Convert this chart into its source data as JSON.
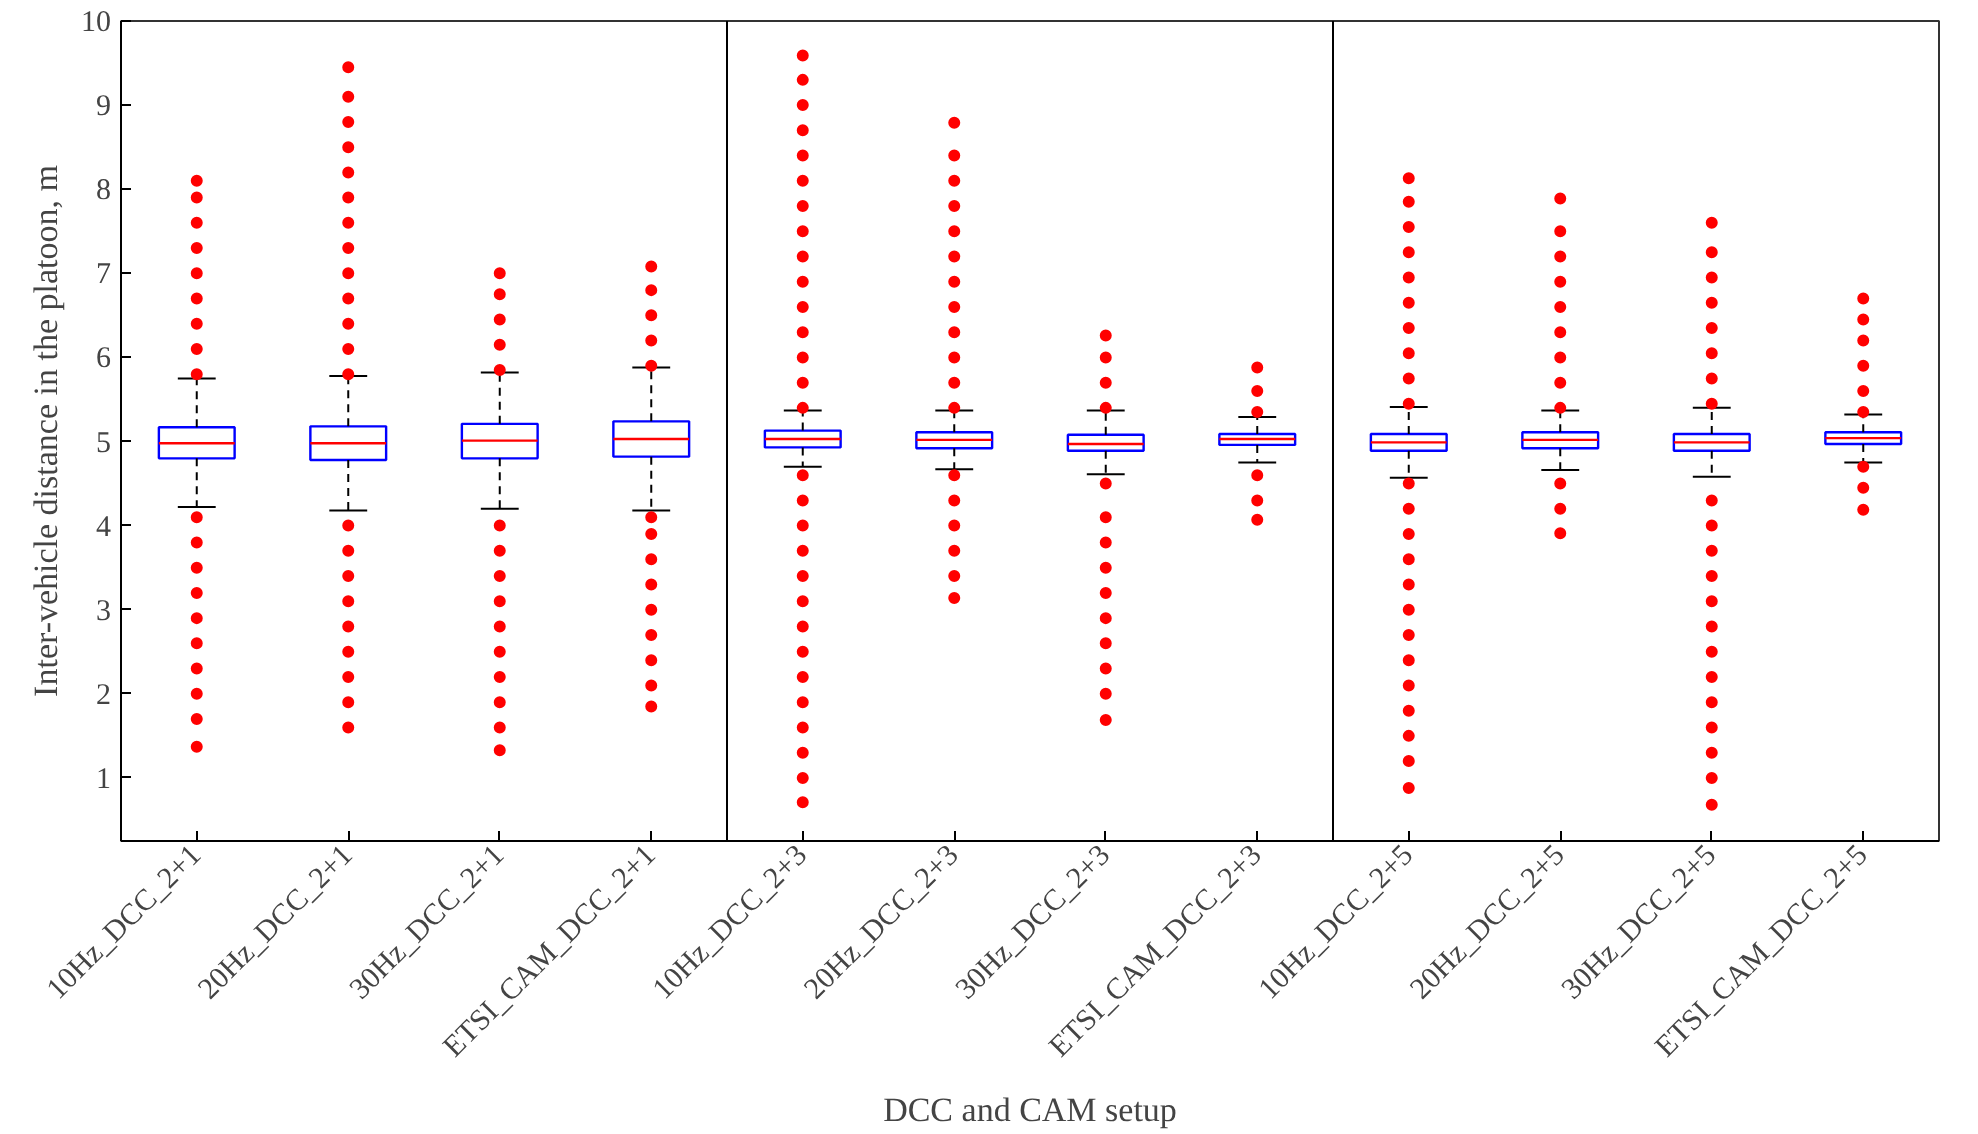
{
  "chart_data": {
    "type": "box",
    "xlabel": "DCC and CAM setup",
    "ylabel": "Inter-vehicle distance in the platoon, m",
    "categories": [
      "10Hz_DCC_2+1",
      "20Hz_DCC_2+1",
      "30Hz_DCC_2+1",
      "ETSI_CAM_DCC_2+1",
      "10Hz_DCC_2+3",
      "20Hz_DCC_2+3",
      "30Hz_DCC_2+3",
      "ETSI_CAM_DCC_2+3",
      "10Hz_DCC_2+5",
      "20Hz_DCC_2+5",
      "30Hz_DCC_2+5",
      "ETSI_CAM_DCC_2+5"
    ],
    "ylim": [
      0.25,
      10
    ],
    "yticks": [
      1,
      2,
      3,
      4,
      5,
      6,
      7,
      8,
      9,
      10
    ],
    "grid": false,
    "boxes": [
      {
        "low": 4.22,
        "q1": 4.8,
        "median": 4.98,
        "q3": 5.17,
        "high": 5.75,
        "outliers": [
          1.37,
          1.7,
          2.0,
          2.3,
          2.6,
          2.9,
          3.2,
          3.5,
          3.8,
          4.1,
          5.8,
          6.1,
          6.4,
          6.7,
          7.0,
          7.3,
          7.6,
          7.9,
          8.1
        ]
      },
      {
        "low": 4.18,
        "q1": 4.78,
        "median": 4.98,
        "q3": 5.18,
        "high": 5.78,
        "outliers": [
          1.6,
          1.9,
          2.2,
          2.5,
          2.8,
          3.1,
          3.4,
          3.7,
          4.0,
          5.8,
          6.1,
          6.4,
          6.7,
          7.0,
          7.3,
          7.6,
          7.9,
          8.2,
          8.5,
          8.8,
          9.1,
          9.45
        ]
      },
      {
        "low": 4.2,
        "q1": 4.8,
        "median": 5.01,
        "q3": 5.21,
        "high": 5.82,
        "outliers": [
          1.33,
          1.6,
          1.9,
          2.2,
          2.5,
          2.8,
          3.1,
          3.4,
          3.7,
          4.0,
          5.85,
          6.15,
          6.45,
          6.75,
          7.0
        ]
      },
      {
        "low": 4.18,
        "q1": 4.82,
        "median": 5.03,
        "q3": 5.24,
        "high": 5.88,
        "outliers": [
          1.85,
          2.1,
          2.4,
          2.7,
          3.0,
          3.3,
          3.6,
          3.9,
          4.1,
          5.9,
          6.2,
          6.5,
          6.8,
          7.08
        ]
      },
      {
        "low": 4.7,
        "q1": 4.93,
        "median": 5.03,
        "q3": 5.13,
        "high": 5.37,
        "outliers": [
          0.71,
          1.0,
          1.3,
          1.6,
          1.9,
          2.2,
          2.5,
          2.8,
          3.1,
          3.4,
          3.7,
          4.0,
          4.3,
          4.6,
          5.4,
          5.7,
          6.0,
          6.3,
          6.6,
          6.9,
          7.2,
          7.5,
          7.8,
          8.1,
          8.4,
          8.7,
          9.0,
          9.3,
          9.59
        ]
      },
      {
        "low": 4.67,
        "q1": 4.92,
        "median": 5.02,
        "q3": 5.11,
        "high": 5.37,
        "outliers": [
          3.14,
          3.4,
          3.7,
          4.0,
          4.3,
          4.6,
          5.4,
          5.7,
          6.0,
          6.3,
          6.6,
          6.9,
          7.2,
          7.5,
          7.8,
          8.1,
          8.4,
          8.79
        ]
      },
      {
        "low": 4.61,
        "q1": 4.89,
        "median": 4.97,
        "q3": 5.08,
        "high": 5.37,
        "outliers": [
          1.69,
          2.0,
          2.3,
          2.6,
          2.9,
          3.2,
          3.5,
          3.8,
          4.1,
          4.5,
          5.4,
          5.7,
          6.0,
          6.26
        ]
      },
      {
        "low": 4.75,
        "q1": 4.96,
        "median": 5.03,
        "q3": 5.09,
        "high": 5.29,
        "outliers": [
          4.07,
          4.3,
          4.6,
          5.35,
          5.6,
          5.88
        ]
      },
      {
        "low": 4.57,
        "q1": 4.89,
        "median": 4.99,
        "q3": 5.09,
        "high": 5.41,
        "outliers": [
          0.88,
          1.2,
          1.5,
          1.8,
          2.1,
          2.4,
          2.7,
          3.0,
          3.3,
          3.6,
          3.9,
          4.2,
          4.5,
          5.45,
          5.75,
          6.05,
          6.35,
          6.65,
          6.95,
          7.25,
          7.55,
          7.85,
          8.13
        ]
      },
      {
        "low": 4.66,
        "q1": 4.92,
        "median": 5.02,
        "q3": 5.11,
        "high": 5.37,
        "outliers": [
          3.91,
          4.2,
          4.5,
          5.4,
          5.7,
          6.0,
          6.3,
          6.6,
          6.9,
          7.2,
          7.5,
          7.89
        ]
      },
      {
        "low": 4.58,
        "q1": 4.89,
        "median": 4.99,
        "q3": 5.09,
        "high": 5.4,
        "outliers": [
          0.68,
          1.0,
          1.3,
          1.6,
          1.9,
          2.2,
          2.5,
          2.8,
          3.1,
          3.4,
          3.7,
          4.0,
          4.3,
          5.45,
          5.75,
          6.05,
          6.35,
          6.65,
          6.95,
          7.25,
          7.6
        ]
      },
      {
        "low": 4.75,
        "q1": 4.97,
        "median": 5.04,
        "q3": 5.11,
        "high": 5.32,
        "outliers": [
          4.19,
          4.45,
          4.7,
          5.35,
          5.6,
          5.9,
          6.2,
          6.45,
          6.7
        ]
      }
    ],
    "marker": "circle"
  }
}
